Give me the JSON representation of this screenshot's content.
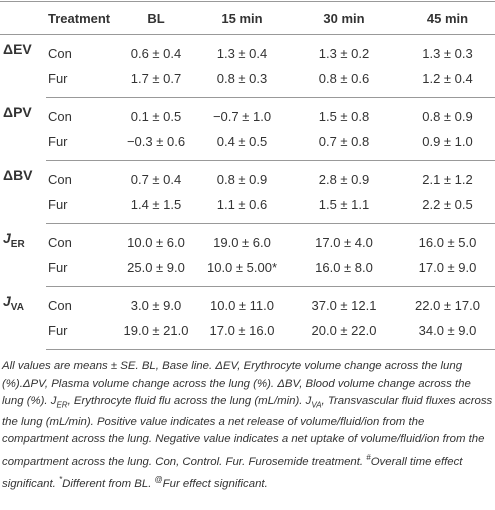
{
  "table": {
    "header": [
      "Treatment",
      "BL",
      "15 min",
      "30 min",
      "45 min"
    ],
    "groups": [
      {
        "label": "ΔEV",
        "rows": [
          {
            "treatment": "Con",
            "values": [
              "0.6 ± 0.4",
              "1.3 ± 0.4",
              "1.3 ± 0.2",
              "1.3 ± 0.3"
            ]
          },
          {
            "treatment": "Fur",
            "values": [
              "1.7 ± 0.7",
              "0.8 ± 0.3",
              "0.8 ± 0.6",
              "1.2 ± 0.4"
            ]
          }
        ]
      },
      {
        "label": "ΔPV",
        "rows": [
          {
            "treatment": "Con",
            "values": [
              "0.1 ± 0.5",
              "−0.7 ± 1.0",
              "1.5 ± 0.8",
              "0.8 ± 0.9"
            ]
          },
          {
            "treatment": "Fur",
            "values": [
              "−0.3 ± 0.6",
              "0.4 ± 0.5",
              "0.7 ± 0.8",
              "0.9 ± 1.0"
            ]
          }
        ]
      },
      {
        "label": "ΔBV",
        "rows": [
          {
            "treatment": "Con",
            "values": [
              "0.7 ± 0.4",
              "0.8 ± 0.9",
              "2.8 ± 0.9",
              "2.1 ± 1.2"
            ]
          },
          {
            "treatment": "Fur",
            "values": [
              "1.4 ± 1.5",
              "1.1 ± 0.6",
              "1.5 ± 1.1",
              "2.2 ± 0.5"
            ]
          }
        ]
      },
      {
        "label": "J",
        "label_sub": "ER",
        "rows": [
          {
            "treatment": "Con",
            "values": [
              "10.0 ± 6.0",
              "19.0 ± 6.0",
              "17.0 ± 4.0",
              "16.0 ± 5.0"
            ]
          },
          {
            "treatment": "Fur",
            "values": [
              "25.0 ± 9.0",
              "10.0 ± 5.00*",
              "16.0 ± 8.0",
              "17.0 ± 9.0"
            ]
          }
        ]
      },
      {
        "label": "J",
        "label_sub": "VA",
        "rows": [
          {
            "treatment": "Con",
            "values": [
              "3.0 ± 9.0",
              "10.0 ± 11.0",
              "37.0 ± 12.1",
              "22.0 ± 17.0"
            ]
          },
          {
            "treatment": "Fur",
            "values": [
              "19.0 ± 21.0",
              "17.0 ± 16.0",
              "20.0 ± 22.0",
              "34.0 ± 9.0"
            ]
          }
        ]
      }
    ]
  },
  "footnote": {
    "parts": [
      "All values are means ± SE. BL, Base line. ΔEV, Erythrocyte volume change across the lung (%).ΔPV, Plasma volume change across the lung (%). ΔBV, Blood volume change across the lung (%). J",
      "ER",
      ", Erythrocyte fluid flu across the lung (mL/min). J",
      "VA",
      ", Transvascular fluid fluxes across the lung (mL/min). Positive value indicates a net release of volume/fluid/ion from the compartment across the lung. Negative value indicates a net uptake of volume/fluid/ion from the compartment across the lung. Con, Control. Fur. Furosemide treatment. ",
      "#",
      "Overall time effect significant. ",
      "*",
      "Different from BL. ",
      "@",
      "Fur effect significant."
    ]
  }
}
